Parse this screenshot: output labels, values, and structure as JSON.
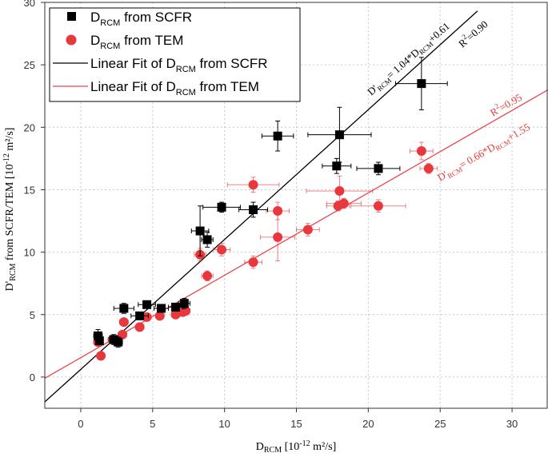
{
  "chart_data": {
    "type": "scatter",
    "title": "",
    "xlabel": {
      "main": "D",
      "sub": "RCM",
      "rest": " [10",
      "sup": "-12",
      "tail": " m²/s]"
    },
    "ylabel": {
      "main": "D'",
      "sub": "RCM",
      "rest": " from SCFR/TEM [10",
      "sup": "-12",
      "tail": " m²/s]"
    },
    "xlim": [
      -2.5,
      32.5
    ],
    "ylim": [
      -2.5,
      30
    ],
    "x_ticks": [
      0,
      5,
      10,
      15,
      20,
      25,
      30
    ],
    "y_ticks": [
      0,
      5,
      10,
      15,
      20,
      25,
      30
    ],
    "grid": true,
    "legend_position": "top-left",
    "colors": {
      "scfr": "#000000",
      "tem": "#e8383d",
      "tem_fit": "#e8474c",
      "grid": "#c8c8c8"
    },
    "legend": [
      {
        "key": "scfr",
        "marker": "square",
        "main": "D",
        "sub": "RCM",
        "rest": " from SCFR"
      },
      {
        "key": "tem",
        "marker": "circle",
        "main": "D",
        "sub": "RCM",
        "rest": " from TEM"
      },
      {
        "key": "scfr_fit",
        "marker": "line",
        "main": "Linear Fit of D",
        "sub": "RCM",
        "rest": " from SCFR"
      },
      {
        "key": "tem_fit",
        "marker": "line",
        "main": "Linear Fit of D",
        "sub": "RCM",
        "rest": " from TEM"
      }
    ],
    "series": [
      {
        "name": "DRCM from SCFR",
        "marker": "square",
        "points": [
          {
            "x": 1.2,
            "y": 3.3,
            "xerr": 0.3,
            "yerr": 0.5
          },
          {
            "x": 1.3,
            "y": 2.9,
            "xerr": 0.2,
            "yerr": 0.3
          },
          {
            "x": 2.3,
            "y": 3.0,
            "xerr": 0.3,
            "yerr": 0.4
          },
          {
            "x": 2.6,
            "y": 2.8,
            "xerr": 0.3,
            "yerr": 0.4
          },
          {
            "x": 3.0,
            "y": 5.5,
            "xerr": 0.7,
            "yerr": 0.4
          },
          {
            "x": 4.1,
            "y": 4.9,
            "xerr": 0.6,
            "yerr": 0.3
          },
          {
            "x": 4.6,
            "y": 5.8,
            "xerr": 0.6,
            "yerr": 0.3
          },
          {
            "x": 5.6,
            "y": 5.5,
            "xerr": 0.5,
            "yerr": 0.3
          },
          {
            "x": 6.6,
            "y": 5.6,
            "xerr": 0.5,
            "yerr": 0.3
          },
          {
            "x": 7.2,
            "y": 5.9,
            "xerr": 0.4,
            "yerr": 0.4
          },
          {
            "x": 8.3,
            "y": 11.7,
            "xerr": 0.6,
            "yerr": 2.0
          },
          {
            "x": 8.8,
            "y": 11.0,
            "xerr": 0.4,
            "yerr": 0.6
          },
          {
            "x": 9.8,
            "y": 13.6,
            "xerr": 1.3,
            "yerr": 0.4
          },
          {
            "x": 12.0,
            "y": 13.4,
            "xerr": 1.0,
            "yerr": 0.6
          },
          {
            "x": 13.7,
            "y": 19.3,
            "xerr": 1.1,
            "yerr": 1.2
          },
          {
            "x": 17.8,
            "y": 16.9,
            "xerr": 1.0,
            "yerr": 0.6
          },
          {
            "x": 18.0,
            "y": 19.4,
            "xerr": 2.2,
            "yerr": 2.2
          },
          {
            "x": 20.7,
            "y": 16.7,
            "xerr": 1.5,
            "yerr": 0.5
          },
          {
            "x": 23.7,
            "y": 23.5,
            "xerr": 1.8,
            "yerr": 2.1
          }
        ]
      },
      {
        "name": "DRCM from TEM",
        "marker": "circle",
        "points": [
          {
            "x": 1.2,
            "y": 2.8,
            "xerr": 0.3,
            "yerr": 0.3
          },
          {
            "x": 1.4,
            "y": 1.7,
            "xerr": 0.2,
            "yerr": 0.3
          },
          {
            "x": 2.2,
            "y": 3.0,
            "xerr": 0.3,
            "yerr": 0.3
          },
          {
            "x": 2.5,
            "y": 2.9,
            "xerr": 0.3,
            "yerr": 0.3
          },
          {
            "x": 2.9,
            "y": 3.4,
            "xerr": 0.3,
            "yerr": 0.3
          },
          {
            "x": 3.0,
            "y": 4.4,
            "xerr": 0.3,
            "yerr": 0.3
          },
          {
            "x": 4.1,
            "y": 4.0,
            "xerr": 0.3,
            "yerr": 0.3
          },
          {
            "x": 4.6,
            "y": 4.8,
            "xerr": 0.3,
            "yerr": 0.3
          },
          {
            "x": 5.5,
            "y": 4.9,
            "xerr": 0.3,
            "yerr": 0.3
          },
          {
            "x": 6.6,
            "y": 5.0,
            "xerr": 0.3,
            "yerr": 0.3
          },
          {
            "x": 7.1,
            "y": 5.2,
            "xerr": 0.3,
            "yerr": 0.3
          },
          {
            "x": 7.3,
            "y": 5.3,
            "xerr": 0.3,
            "yerr": 0.3
          },
          {
            "x": 8.3,
            "y": 9.8,
            "xerr": 0.4,
            "yerr": 0.5
          },
          {
            "x": 8.8,
            "y": 8.1,
            "xerr": 0.4,
            "yerr": 0.4
          },
          {
            "x": 9.8,
            "y": 10.2,
            "xerr": 0.6,
            "yerr": 0.5
          },
          {
            "x": 12.0,
            "y": 9.2,
            "xerr": 0.6,
            "yerr": 0.5
          },
          {
            "x": 12.0,
            "y": 15.4,
            "xerr": 1.8,
            "yerr": 0.6
          },
          {
            "x": 13.7,
            "y": 13.3,
            "xerr": 0.8,
            "yerr": 0.7
          },
          {
            "x": 13.7,
            "y": 11.2,
            "xerr": 1.2,
            "yerr": 1.9
          },
          {
            "x": 15.8,
            "y": 11.8,
            "xerr": 0.8,
            "yerr": 0.5
          },
          {
            "x": 17.9,
            "y": 13.7,
            "xerr": 0.8,
            "yerr": 0.4
          },
          {
            "x": 18.0,
            "y": 14.9,
            "xerr": 2.3,
            "yerr": 1.2
          },
          {
            "x": 18.3,
            "y": 13.9,
            "xerr": 1.2,
            "yerr": 0.4
          },
          {
            "x": 20.7,
            "y": 13.7,
            "xerr": 1.9,
            "yerr": 0.5
          },
          {
            "x": 23.7,
            "y": 18.1,
            "xerr": 0.8,
            "yerr": 0.7
          },
          {
            "x": 24.2,
            "y": 16.7,
            "xerr": 0.6,
            "yerr": 0.4
          }
        ]
      }
    ],
    "fits": [
      {
        "key": "scfr_fit",
        "slope": 1.04,
        "intercept": 0.61,
        "x_range": [
          -2.5,
          27.6
        ]
      },
      {
        "key": "tem_fit",
        "slope": 0.66,
        "intercept": 1.55,
        "x_range": [
          -2.5,
          32.5
        ]
      }
    ],
    "annotations": {
      "scfr_equation": {
        "a": "D'",
        "s1": "RCM",
        "b": "= 1.04*D",
        "s2": "RCM",
        "c": "+0.61"
      },
      "scfr_r2": {
        "a": "R",
        "sup": "2",
        "b": "=0.90"
      },
      "tem_equation": {
        "a": "D'",
        "s1": "RCM",
        "b": "= 0.66*D",
        "s2": "RCM",
        "c": "+1.55"
      },
      "tem_r2": {
        "a": "R",
        "sup": "2",
        "b": "=0.95"
      }
    }
  }
}
